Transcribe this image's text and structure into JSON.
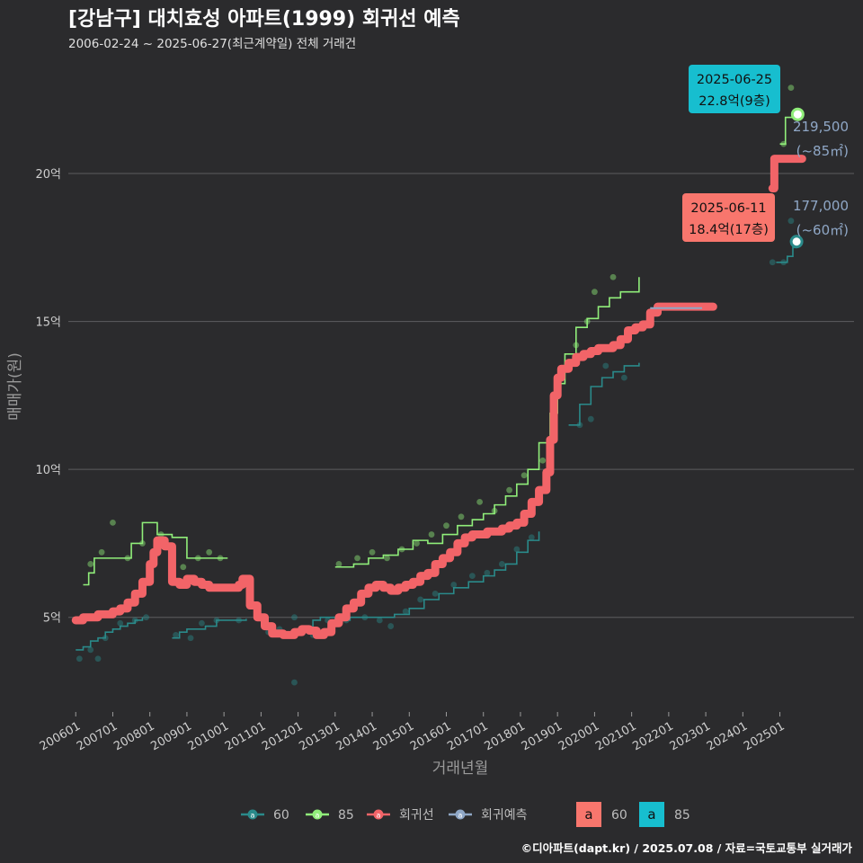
{
  "chart_data": {
    "type": "line",
    "title": "[강남구] 대치효성 아파트(1999) 회귀선 예측",
    "subtitle": "2006-02-24 ~ 2025-06-27(최근계약일) 전체 거래건",
    "xlabel": "거래년월",
    "ylabel": "매매가(원)",
    "x_ticks": [
      "200601",
      "200701",
      "200801",
      "200901",
      "201001",
      "201101",
      "201201",
      "201301",
      "201401",
      "201501",
      "201601",
      "201701",
      "201801",
      "201901",
      "202001",
      "202101",
      "202201",
      "202301",
      "202401",
      "202501"
    ],
    "y_ticks": [
      {
        "value": 5,
        "label": "5억"
      },
      {
        "value": 10,
        "label": "10억"
      },
      {
        "value": 15,
        "label": "15억"
      },
      {
        "value": 20,
        "label": "20억"
      }
    ],
    "xlim": [
      2005.8,
      2027.0
    ],
    "ylim": [
      1.8,
      23.8
    ],
    "grid": "horizontal",
    "legend_position": "bottom",
    "series": [
      {
        "name": "60",
        "color": "#2a8a8a",
        "values": [
          [
            2006.0,
            3.9
          ],
          [
            2006.2,
            4.0
          ],
          [
            2006.4,
            4.2
          ],
          [
            2006.6,
            4.3
          ],
          [
            2006.8,
            4.5
          ],
          [
            2007.0,
            4.6
          ],
          [
            2007.2,
            4.7
          ],
          [
            2007.4,
            4.8
          ],
          [
            2007.6,
            4.9
          ],
          [
            2007.8,
            5.0
          ],
          [
            2008.6,
            4.3
          ],
          [
            2008.8,
            4.5
          ],
          [
            2009.0,
            4.6
          ],
          [
            2009.2,
            4.6
          ],
          [
            2009.5,
            4.7
          ],
          [
            2009.8,
            4.9
          ],
          [
            2010.2,
            4.9
          ],
          [
            2010.6,
            4.95
          ],
          [
            2011.8,
            4.5
          ],
          [
            2012.0,
            4.5
          ],
          [
            2012.2,
            4.6
          ],
          [
            2012.4,
            4.9
          ],
          [
            2012.6,
            5.0
          ],
          [
            2013.0,
            4.9
          ],
          [
            2013.4,
            5.0
          ],
          [
            2013.8,
            5.0
          ],
          [
            2014.2,
            5.0
          ],
          [
            2014.6,
            5.1
          ],
          [
            2015.0,
            5.3
          ],
          [
            2015.4,
            5.6
          ],
          [
            2015.8,
            5.8
          ],
          [
            2016.2,
            6.0
          ],
          [
            2016.6,
            6.2
          ],
          [
            2017.0,
            6.4
          ],
          [
            2017.3,
            6.6
          ],
          [
            2017.6,
            6.8
          ],
          [
            2017.9,
            7.2
          ],
          [
            2018.2,
            7.6
          ],
          [
            2018.5,
            7.9
          ],
          [
            2019.3,
            11.5
          ],
          [
            2019.6,
            12.2
          ],
          [
            2019.9,
            12.8
          ],
          [
            2020.2,
            13.1
          ],
          [
            2020.5,
            13.3
          ],
          [
            2020.8,
            13.5
          ],
          [
            2021.2,
            13.6
          ],
          [
            2024.9,
            17.0
          ],
          [
            2025.05,
            17.0
          ],
          [
            2025.2,
            17.2
          ],
          [
            2025.35,
            17.5
          ],
          [
            2025.45,
            17.7
          ]
        ]
      },
      {
        "name": "85",
        "color": "#90ee7a",
        "values": [
          [
            2006.2,
            6.1
          ],
          [
            2006.35,
            6.5
          ],
          [
            2006.5,
            7.0
          ],
          [
            2006.8,
            7.0
          ],
          [
            2007.2,
            7.0
          ],
          [
            2007.5,
            7.5
          ],
          [
            2007.8,
            8.2
          ],
          [
            2008.2,
            7.8
          ],
          [
            2008.6,
            7.7
          ],
          [
            2009.0,
            7.0
          ],
          [
            2009.4,
            7.0
          ],
          [
            2009.8,
            7.0
          ],
          [
            2010.1,
            7.0
          ],
          [
            2013.0,
            6.7
          ],
          [
            2013.5,
            6.8
          ],
          [
            2013.9,
            7.0
          ],
          [
            2014.3,
            7.1
          ],
          [
            2014.7,
            7.3
          ],
          [
            2015.1,
            7.6
          ],
          [
            2015.5,
            7.5
          ],
          [
            2015.9,
            7.8
          ],
          [
            2016.3,
            8.1
          ],
          [
            2016.7,
            8.3
          ],
          [
            2017.0,
            8.5
          ],
          [
            2017.3,
            8.8
          ],
          [
            2017.6,
            9.1
          ],
          [
            2017.9,
            9.5
          ],
          [
            2018.2,
            10.0
          ],
          [
            2018.5,
            10.9
          ],
          [
            2018.8,
            11.9
          ],
          [
            2019.0,
            12.9
          ],
          [
            2019.2,
            13.9
          ],
          [
            2019.5,
            14.8
          ],
          [
            2019.8,
            15.1
          ],
          [
            2020.1,
            15.5
          ],
          [
            2020.4,
            15.8
          ],
          [
            2020.7,
            16.0
          ],
          [
            2021.0,
            16.0
          ],
          [
            2021.2,
            16.5
          ],
          [
            2025.0,
            21.0
          ],
          [
            2025.15,
            21.9
          ],
          [
            2025.48,
            22.0
          ]
        ]
      },
      {
        "name": "회귀선",
        "color": "#f26468",
        "values": [
          [
            2006.0,
            4.9
          ],
          [
            2006.2,
            5.0
          ],
          [
            2006.6,
            5.1
          ],
          [
            2007.0,
            5.2
          ],
          [
            2007.2,
            5.3
          ],
          [
            2007.4,
            5.5
          ],
          [
            2007.6,
            5.8
          ],
          [
            2007.8,
            6.2
          ],
          [
            2008.0,
            6.8
          ],
          [
            2008.1,
            7.2
          ],
          [
            2008.2,
            7.6
          ],
          [
            2008.4,
            7.4
          ],
          [
            2008.6,
            6.2
          ],
          [
            2008.8,
            6.1
          ],
          [
            2009.0,
            6.3
          ],
          [
            2009.2,
            6.2
          ],
          [
            2009.4,
            6.1
          ],
          [
            2009.6,
            6.0
          ],
          [
            2009.8,
            6.0
          ],
          [
            2010.0,
            6.0
          ],
          [
            2010.2,
            6.0
          ],
          [
            2010.4,
            6.1
          ],
          [
            2010.5,
            6.3
          ],
          [
            2010.7,
            5.4
          ],
          [
            2010.9,
            5.0
          ],
          [
            2011.1,
            4.7
          ],
          [
            2011.3,
            4.45
          ],
          [
            2011.6,
            4.4
          ],
          [
            2011.9,
            4.5
          ],
          [
            2012.1,
            4.6
          ],
          [
            2012.3,
            4.55
          ],
          [
            2012.5,
            4.4
          ],
          [
            2012.7,
            4.5
          ],
          [
            2012.9,
            4.8
          ],
          [
            2013.1,
            5.0
          ],
          [
            2013.3,
            5.3
          ],
          [
            2013.5,
            5.5
          ],
          [
            2013.7,
            5.8
          ],
          [
            2013.9,
            6.0
          ],
          [
            2014.1,
            6.1
          ],
          [
            2014.3,
            6.0
          ],
          [
            2014.5,
            5.9
          ],
          [
            2014.7,
            6.0
          ],
          [
            2014.9,
            6.1
          ],
          [
            2015.1,
            6.2
          ],
          [
            2015.3,
            6.4
          ],
          [
            2015.5,
            6.5
          ],
          [
            2015.7,
            6.8
          ],
          [
            2015.9,
            7.0
          ],
          [
            2016.1,
            7.2
          ],
          [
            2016.3,
            7.5
          ],
          [
            2016.5,
            7.7
          ],
          [
            2016.7,
            7.8
          ],
          [
            2016.9,
            7.8
          ],
          [
            2017.1,
            7.9
          ],
          [
            2017.3,
            7.9
          ],
          [
            2017.5,
            8.0
          ],
          [
            2017.7,
            8.1
          ],
          [
            2017.9,
            8.2
          ],
          [
            2018.1,
            8.5
          ],
          [
            2018.3,
            8.9
          ],
          [
            2018.5,
            9.3
          ],
          [
            2018.7,
            9.9
          ],
          [
            2018.8,
            11.0
          ],
          [
            2018.9,
            12.5
          ],
          [
            2019.0,
            13.1
          ],
          [
            2019.1,
            13.4
          ],
          [
            2019.3,
            13.6
          ],
          [
            2019.5,
            13.8
          ],
          [
            2019.7,
            13.9
          ],
          [
            2019.9,
            14.0
          ],
          [
            2020.1,
            14.1
          ],
          [
            2020.3,
            14.1
          ],
          [
            2020.5,
            14.2
          ],
          [
            2020.7,
            14.4
          ],
          [
            2020.9,
            14.7
          ],
          [
            2021.1,
            14.8
          ],
          [
            2021.3,
            14.9
          ],
          [
            2021.5,
            15.3
          ],
          [
            2021.7,
            15.5
          ],
          [
            2022.2,
            15.5
          ],
          [
            2022.8,
            15.5
          ],
          [
            2023.2,
            15.5
          ],
          [
            2024.8,
            19.5
          ],
          [
            2024.85,
            20.5
          ],
          [
            2025.2,
            20.5
          ],
          [
            2025.6,
            20.5
          ]
        ]
      },
      {
        "name": "회귀예측",
        "color": "#8fa7c6",
        "values": [
          [
            2021.5,
            15.45
          ],
          [
            2022.2,
            15.45
          ],
          [
            2022.9,
            15.45
          ]
        ]
      }
    ],
    "scatter_points": {
      "60": [
        [
          2006.1,
          3.6
        ],
        [
          2006.4,
          3.9
        ],
        [
          2006.6,
          3.6
        ],
        [
          2006.8,
          4.3
        ],
        [
          2007.2,
          4.8
        ],
        [
          2007.6,
          4.9
        ],
        [
          2007.9,
          5.0
        ],
        [
          2008.7,
          4.4
        ],
        [
          2009.1,
          4.3
        ],
        [
          2009.4,
          4.8
        ],
        [
          2009.8,
          4.9
        ],
        [
          2010.4,
          4.9
        ],
        [
          2011.2,
          4.5
        ],
        [
          2011.5,
          4.6
        ],
        [
          2011.9,
          5.0
        ],
        [
          2012.1,
          4.5
        ],
        [
          2012.4,
          4.4
        ],
        [
          2012.8,
          4.9
        ],
        [
          2013.3,
          4.9
        ],
        [
          2013.8,
          5.0
        ],
        [
          2014.2,
          4.9
        ],
        [
          2014.5,
          4.7
        ],
        [
          2014.9,
          5.2
        ],
        [
          2015.3,
          5.6
        ],
        [
          2015.7,
          5.8
        ],
        [
          2016.2,
          6.1
        ],
        [
          2016.7,
          6.4
        ],
        [
          2017.1,
          6.5
        ],
        [
          2017.5,
          6.8
        ],
        [
          2017.9,
          7.3
        ],
        [
          2018.3,
          7.7
        ],
        [
          2011.9,
          2.8
        ],
        [
          2019.6,
          11.5
        ],
        [
          2019.9,
          11.7
        ],
        [
          2020.3,
          13.5
        ],
        [
          2020.8,
          13.1
        ],
        [
          2024.8,
          17.0
        ],
        [
          2025.1,
          17.0
        ],
        [
          2025.3,
          18.4
        ]
      ],
      "85": [
        [
          2006.4,
          6.8
        ],
        [
          2006.7,
          7.2
        ],
        [
          2007.0,
          8.2
        ],
        [
          2007.4,
          7.0
        ],
        [
          2007.8,
          7.5
        ],
        [
          2008.3,
          7.8
        ],
        [
          2008.9,
          6.7
        ],
        [
          2009.3,
          7.0
        ],
        [
          2009.6,
          7.2
        ],
        [
          2009.9,
          7.0
        ],
        [
          2013.1,
          6.8
        ],
        [
          2013.6,
          7.0
        ],
        [
          2014.0,
          7.2
        ],
        [
          2014.4,
          7.0
        ],
        [
          2014.8,
          7.3
        ],
        [
          2015.2,
          7.5
        ],
        [
          2015.6,
          7.8
        ],
        [
          2016.0,
          8.1
        ],
        [
          2016.4,
          8.4
        ],
        [
          2016.9,
          8.9
        ],
        [
          2017.3,
          8.6
        ],
        [
          2017.7,
          9.3
        ],
        [
          2018.1,
          9.8
        ],
        [
          2018.6,
          10.3
        ],
        [
          2019.0,
          12.6
        ],
        [
          2019.5,
          14.2
        ],
        [
          2019.8,
          15.0
        ],
        [
          2020.0,
          16.0
        ],
        [
          2020.5,
          16.5
        ],
        [
          2025.1,
          21.0
        ],
        [
          2025.3,
          22.9
        ]
      ]
    },
    "end_labels": [
      {
        "series": "85",
        "line1": "219,500",
        "line2": "(~85㎡)"
      },
      {
        "series": "60",
        "line1": "177,000",
        "line2": "(~60㎡)"
      }
    ],
    "callouts": [
      {
        "series": "85",
        "date": "2025-06-25",
        "price": "22.8억(9층)",
        "color": "#17becf",
        "x": 2025.48,
        "y": 22.0
      },
      {
        "series": "60",
        "date": "2025-06-11",
        "price": "18.4억(17층)",
        "color": "#f8766d",
        "x": 2025.45,
        "y": 17.7
      }
    ],
    "legend": {
      "items": [
        {
          "label": "60",
          "color": "#2a8a8a"
        },
        {
          "label": "85",
          "color": "#90ee7a"
        },
        {
          "label": "회귀선",
          "color": "#f26468"
        },
        {
          "label": "회귀예측",
          "color": "#8fa7c6"
        }
      ],
      "fill_keys": [
        {
          "glyph": "a",
          "label": "60",
          "color": "#f8766d"
        },
        {
          "glyph": "a",
          "label": "85",
          "color": "#17becf"
        }
      ]
    },
    "caption": "©디아파트(dapt.kr) / 2025.07.08 / 자료=국토교통부 실거래가"
  }
}
